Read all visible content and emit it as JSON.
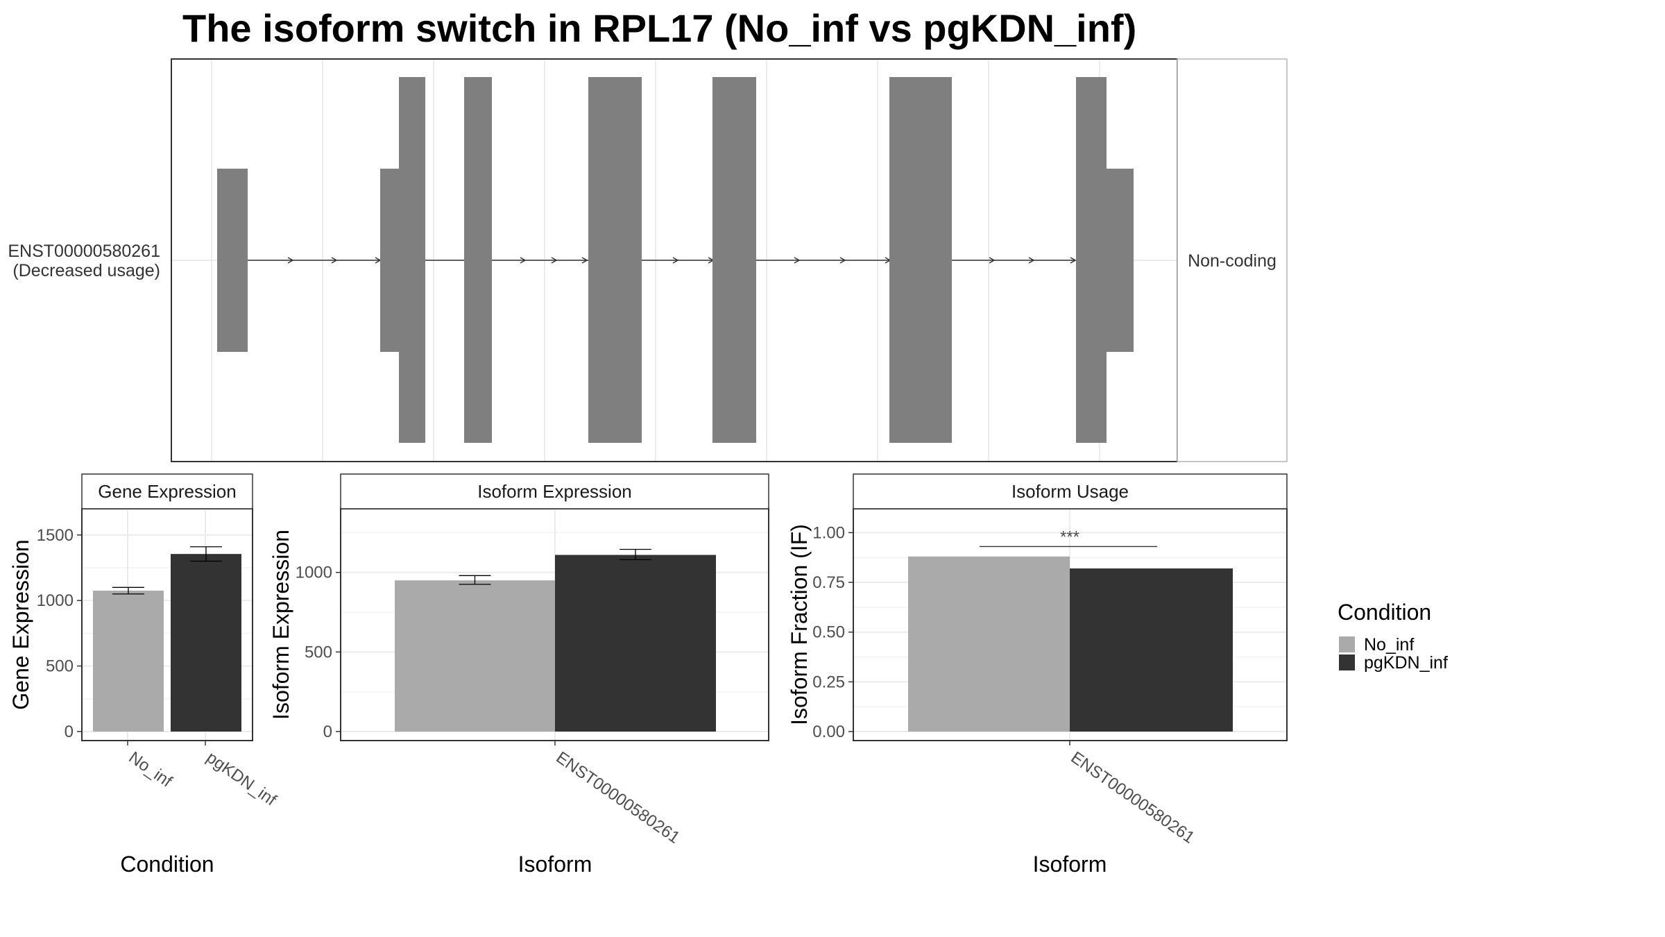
{
  "title": "The isoform switch in RPL17 (No_inf vs pgKDN_inf)",
  "colors": {
    "exon": "#7f7f7f",
    "intron": "#333333",
    "no_inf": "#aaaaaa",
    "pgkdn_inf": "#333333",
    "grid": "#ebebeb",
    "panel_border": "#333333",
    "strip_fill": "#ffffff"
  },
  "transcript": {
    "id_line1": "ENST00000580261",
    "id_line2": "(Decreased usage)",
    "type": "Non-coding"
  },
  "legend": {
    "title": "Condition",
    "items": [
      {
        "label": "No_inf",
        "color": "#aaaaaa"
      },
      {
        "label": "pgKDN_inf",
        "color": "#333333"
      }
    ]
  },
  "chart_data": [
    {
      "type": "bar",
      "panel": "Gene Expression",
      "xlabel": "Condition",
      "ylabel": "Gene Expression",
      "categories": [
        "No_inf",
        "pgKDN_inf"
      ],
      "values": [
        1075,
        1355
      ],
      "error": [
        [
          1050,
          1100
        ],
        [
          1300,
          1410
        ]
      ],
      "yticks": [
        0,
        500,
        1000,
        1500
      ],
      "ylim": [
        0,
        1700
      ]
    },
    {
      "type": "bar",
      "panel": "Isoform Expression",
      "xlabel": "Isoform",
      "ylabel": "Isoform Expression",
      "categories": [
        "ENST00000580261"
      ],
      "series": [
        {
          "name": "No_inf",
          "values": [
            950
          ],
          "error": [
            [
              925,
              980
            ]
          ]
        },
        {
          "name": "pgKDN_inf",
          "values": [
            1110
          ],
          "error": [
            [
              1080,
              1145
            ]
          ]
        }
      ],
      "yticks": [
        0,
        500,
        1000
      ],
      "ylim": [
        0,
        1400
      ]
    },
    {
      "type": "bar",
      "panel": "Isoform Usage",
      "xlabel": "Isoform",
      "ylabel": "Isoform Fraction (IF)",
      "categories": [
        "ENST00000580261"
      ],
      "series": [
        {
          "name": "No_inf",
          "values": [
            0.88
          ]
        },
        {
          "name": "pgKDN_inf",
          "values": [
            0.82
          ]
        }
      ],
      "significance": "***",
      "yticks": [
        "0.00",
        "0.25",
        "0.50",
        "0.75",
        "1.00"
      ],
      "ylim": [
        0,
        1.12
      ]
    }
  ]
}
